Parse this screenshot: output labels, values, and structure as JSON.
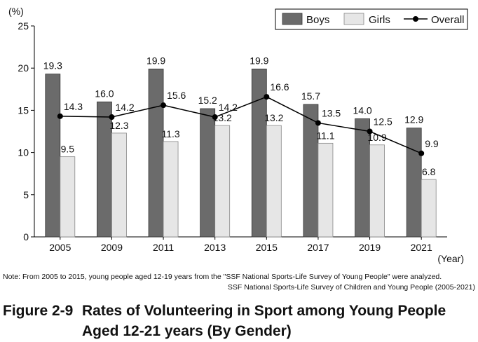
{
  "chart_data": {
    "type": "bar",
    "categories": [
      "2005",
      "2009",
      "2011",
      "2013",
      "2015",
      "2017",
      "2019",
      "2021"
    ],
    "series": [
      {
        "name": "Boys",
        "type": "bar",
        "color": "#6b6b6b",
        "values": [
          19.3,
          16.0,
          19.9,
          15.2,
          19.9,
          15.7,
          14.0,
          12.9
        ]
      },
      {
        "name": "Girls",
        "type": "bar",
        "color": "#e6e6e6",
        "values": [
          9.5,
          12.3,
          11.3,
          13.2,
          13.2,
          11.1,
          10.9,
          6.8
        ]
      },
      {
        "name": "Overall",
        "type": "line",
        "color": "#000000",
        "values": [
          14.3,
          14.2,
          15.6,
          14.2,
          16.6,
          13.5,
          12.5,
          9.9
        ]
      }
    ],
    "value_labels": {
      "Boys": [
        "19.3",
        "16.0",
        "19.9",
        "15.2",
        "19.9",
        "15.7",
        "14.0",
        "12.9"
      ],
      "Girls": [
        "9.5",
        "12.3",
        "11.3",
        "13.2",
        "13.2",
        "11.1",
        "10.9",
        "6.8"
      ],
      "Overall": [
        "14.3",
        "14.2",
        "15.6",
        "14.2",
        "16.6",
        "13.5",
        "12.5",
        "9.9"
      ]
    },
    "y_unit_label": "(%)",
    "x_unit_label": "(Year)",
    "yticks": [
      "0",
      "5",
      "10",
      "15",
      "20",
      "25"
    ],
    "ylim": [
      0,
      25
    ],
    "legend_position": "top-right",
    "grid": false
  },
  "notes": {
    "line1": "Note: From 2005 to 2015, young people aged 12-19 years from the \"SSF National Sports-Life Survey of Young People\" were analyzed.",
    "line2": "SSF National Sports-Life Survey of Children and Young People (2005-2021)"
  },
  "figure": {
    "number": "Figure 2-9",
    "title_line1": "Rates of Volunteering in Sport among Young People",
    "title_line2": "Aged 12-21 years (By Gender)"
  }
}
